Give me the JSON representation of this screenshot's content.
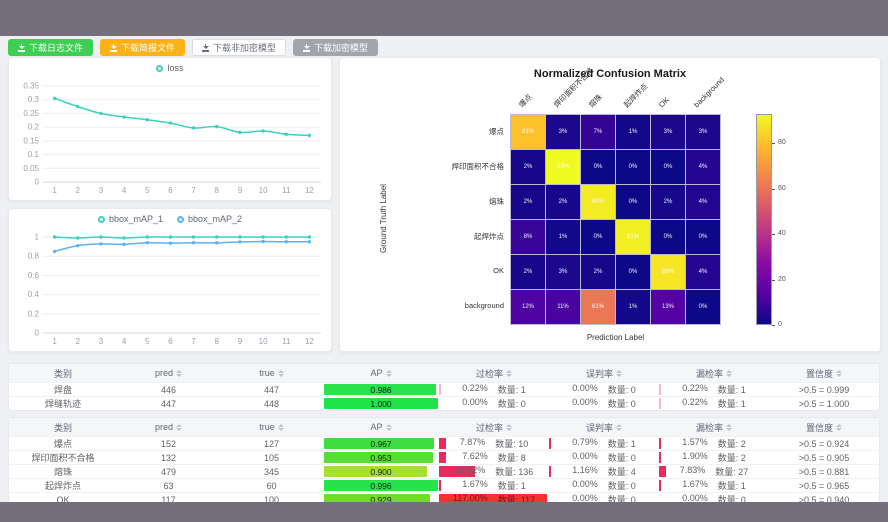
{
  "toolbar": {
    "buttons": [
      {
        "label": "下载日志文件",
        "style": "green"
      },
      {
        "label": "下载简报文件",
        "style": "orange"
      },
      {
        "label": "下载非加密模型",
        "style": "plain"
      },
      {
        "label": "下载加密模型",
        "style": "gray"
      }
    ]
  },
  "charts": {
    "loss": {
      "type": "line",
      "x": [
        1,
        2,
        3,
        4,
        5,
        6,
        7,
        8,
        9,
        10,
        11,
        12
      ],
      "ylim": [
        0,
        0.35
      ],
      "yticks": [
        0,
        0.05,
        0.1,
        0.15,
        0.2,
        0.25,
        0.3,
        0.35
      ],
      "series": [
        {
          "name": "loss",
          "color": "#3bd1be",
          "values": [
            0.305,
            0.275,
            0.25,
            0.237,
            0.227,
            0.215,
            0.197,
            0.202,
            0.181,
            0.186,
            0.174,
            0.17
          ]
        }
      ]
    },
    "bbox_map": {
      "type": "line",
      "x": [
        1,
        2,
        3,
        4,
        5,
        6,
        7,
        8,
        9,
        10,
        11,
        12
      ],
      "ylim": [
        0,
        1
      ],
      "yticks": [
        0,
        0.2,
        0.4,
        0.6,
        0.8,
        1
      ],
      "series": [
        {
          "name": "bbox_mAP_1",
          "color": "#3bd1be",
          "values": [
            1,
            0.99,
            1,
            0.99,
            1,
            1,
            1,
            1,
            1,
            1,
            1,
            1
          ]
        },
        {
          "name": "bbox_mAP_2",
          "color": "#5cb3ef",
          "values": [
            0.85,
            0.91,
            0.928,
            0.924,
            0.94,
            0.936,
            0.94,
            0.939,
            0.949,
            0.953,
            0.95,
            0.95
          ]
        }
      ]
    }
  },
  "confusion_matrix": {
    "type": "heatmap",
    "title": "Normalized Confusion Matrix",
    "xlabel": "Prediction Label",
    "ylabel": "Ground Truth Label",
    "labels": [
      "爆点",
      "焊印面积不合格",
      "熔珠",
      "起焊炸点",
      "OK",
      "background"
    ],
    "values_pct": [
      [
        81,
        3,
        7,
        1,
        3,
        3
      ],
      [
        2,
        93,
        0,
        0,
        0,
        4
      ],
      [
        2,
        2,
        90,
        0,
        2,
        4
      ],
      [
        8,
        1,
        0,
        91,
        0,
        0
      ],
      [
        2,
        3,
        2,
        0,
        89,
        4
      ],
      [
        12,
        11,
        61,
        1,
        13,
        0
      ]
    ],
    "vmax": 93,
    "colorbar_ticks": [
      0,
      20,
      40,
      60,
      80
    ]
  },
  "tables": {
    "headers": [
      "类别",
      "pred",
      "true",
      "AP",
      "过检率",
      "误判率",
      "漏检率",
      "置信度"
    ],
    "count_label": "数量",
    "rate_scale_max": 117,
    "groups": [
      {
        "rows": [
          {
            "label": "焊盘",
            "pred": "446",
            "true": "447",
            "ap": "0.986",
            "ap_color": "#29e24c",
            "over": {
              "pct": "0.22%",
              "count": "1",
              "value": 0.22
            },
            "mis": {
              "pct": "0.00%",
              "count": "0",
              "value": 0
            },
            "miss": {
              "pct": "0.22%",
              "count": "1",
              "value": 0.22
            },
            "conf": ">0.5 = 0.999"
          },
          {
            "label": "焊缝轨迹",
            "pred": "447",
            "true": "448",
            "ap": "1.000",
            "ap_color": "#1fe446",
            "over": {
              "pct": "0.00%",
              "count": "0",
              "value": 0
            },
            "mis": {
              "pct": "0.00%",
              "count": "0",
              "value": 0
            },
            "miss": {
              "pct": "0.22%",
              "count": "1",
              "value": 0.22
            },
            "conf": ">0.5 = 1.000"
          }
        ]
      },
      {
        "rows": [
          {
            "label": "爆点",
            "pred": "152",
            "true": "127",
            "ap": "0.967",
            "ap_color": "#3dde3d",
            "over": {
              "pct": "7.87%",
              "count": "10",
              "value": 7.87
            },
            "mis": {
              "pct": "0.79%",
              "count": "1",
              "value": 0.79
            },
            "miss": {
              "pct": "1.57%",
              "count": "2",
              "value": 1.57
            },
            "conf": ">0.5 = 0.924"
          },
          {
            "label": "焊印面积不合格",
            "pred": "132",
            "true": "105",
            "ap": "0.953",
            "ap_color": "#56dc33",
            "over": {
              "pct": "7.62%",
              "count": "8",
              "value": 7.62
            },
            "mis": {
              "pct": "0.00%",
              "count": "0",
              "value": 0
            },
            "miss": {
              "pct": "1.90%",
              "count": "2",
              "value": 1.9
            },
            "conf": ">0.5 = 0.905"
          },
          {
            "label": "熔珠",
            "pred": "479",
            "true": "345",
            "ap": "0.900",
            "ap_color": "#a6df2f",
            "over": {
              "pct": "39.42%",
              "count": "136",
              "value": 39.42
            },
            "mis": {
              "pct": "1.16%",
              "count": "4",
              "value": 1.16
            },
            "miss": {
              "pct": "7.83%",
              "count": "27",
              "value": 7.83
            },
            "conf": ">0.5 = 0.881"
          },
          {
            "label": "起焊炸点",
            "pred": "63",
            "true": "60",
            "ap": "0.996",
            "ap_color": "#25e348",
            "over": {
              "pct": "1.67%",
              "count": "1",
              "value": 1.67
            },
            "mis": {
              "pct": "0.00%",
              "count": "0",
              "value": 0
            },
            "miss": {
              "pct": "1.67%",
              "count": "1",
              "value": 1.67
            },
            "conf": ">0.5 = 0.965"
          },
          {
            "label": "OK",
            "pred": "117",
            "true": "100",
            "ap": "0.929",
            "ap_color": "#71da2e",
            "over": {
              "pct": "117.00%",
              "count": "117",
              "value": 117
            },
            "mis": {
              "pct": "0.00%",
              "count": "0",
              "value": 0
            },
            "miss": {
              "pct": "0.00%",
              "count": "0",
              "value": 0
            },
            "conf": ">0.5 = 0.940"
          }
        ]
      }
    ]
  }
}
